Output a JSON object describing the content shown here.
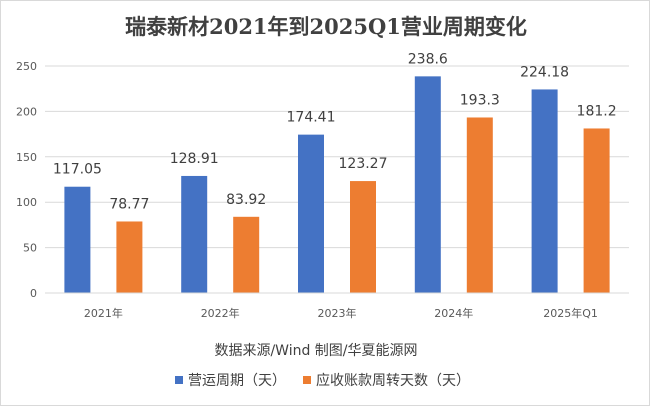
{
  "chart_data": {
    "type": "bar",
    "title": "瑞泰新材2021年到2025Q1营业周期变化",
    "categories": [
      "2021年",
      "2022年",
      "2023年",
      "2024年",
      "2025年Q1"
    ],
    "series": [
      {
        "name": "营运周期（天）",
        "values": [
          117.05,
          128.91,
          174.41,
          238.6,
          224.18
        ],
        "labels": [
          "117.05",
          "128.91",
          "174.41",
          "238.6",
          "224.18"
        ],
        "color": "#4472C4"
      },
      {
        "name": "应收账款周转天数（天）",
        "values": [
          78.77,
          83.92,
          123.27,
          193.3,
          181.2
        ],
        "labels": [
          "78.77",
          "83.92",
          "123.27",
          "193.3",
          "181.2"
        ],
        "color": "#ED7D31"
      }
    ],
    "ylim": [
      0,
      250
    ],
    "yticks": [
      "0",
      "50",
      "100",
      "150",
      "200",
      "250"
    ],
    "grid": true,
    "legend_position": "bottom",
    "source_note": "数据来源/Wind 制图/华夏能源网",
    "xlabel": "",
    "ylabel": ""
  }
}
